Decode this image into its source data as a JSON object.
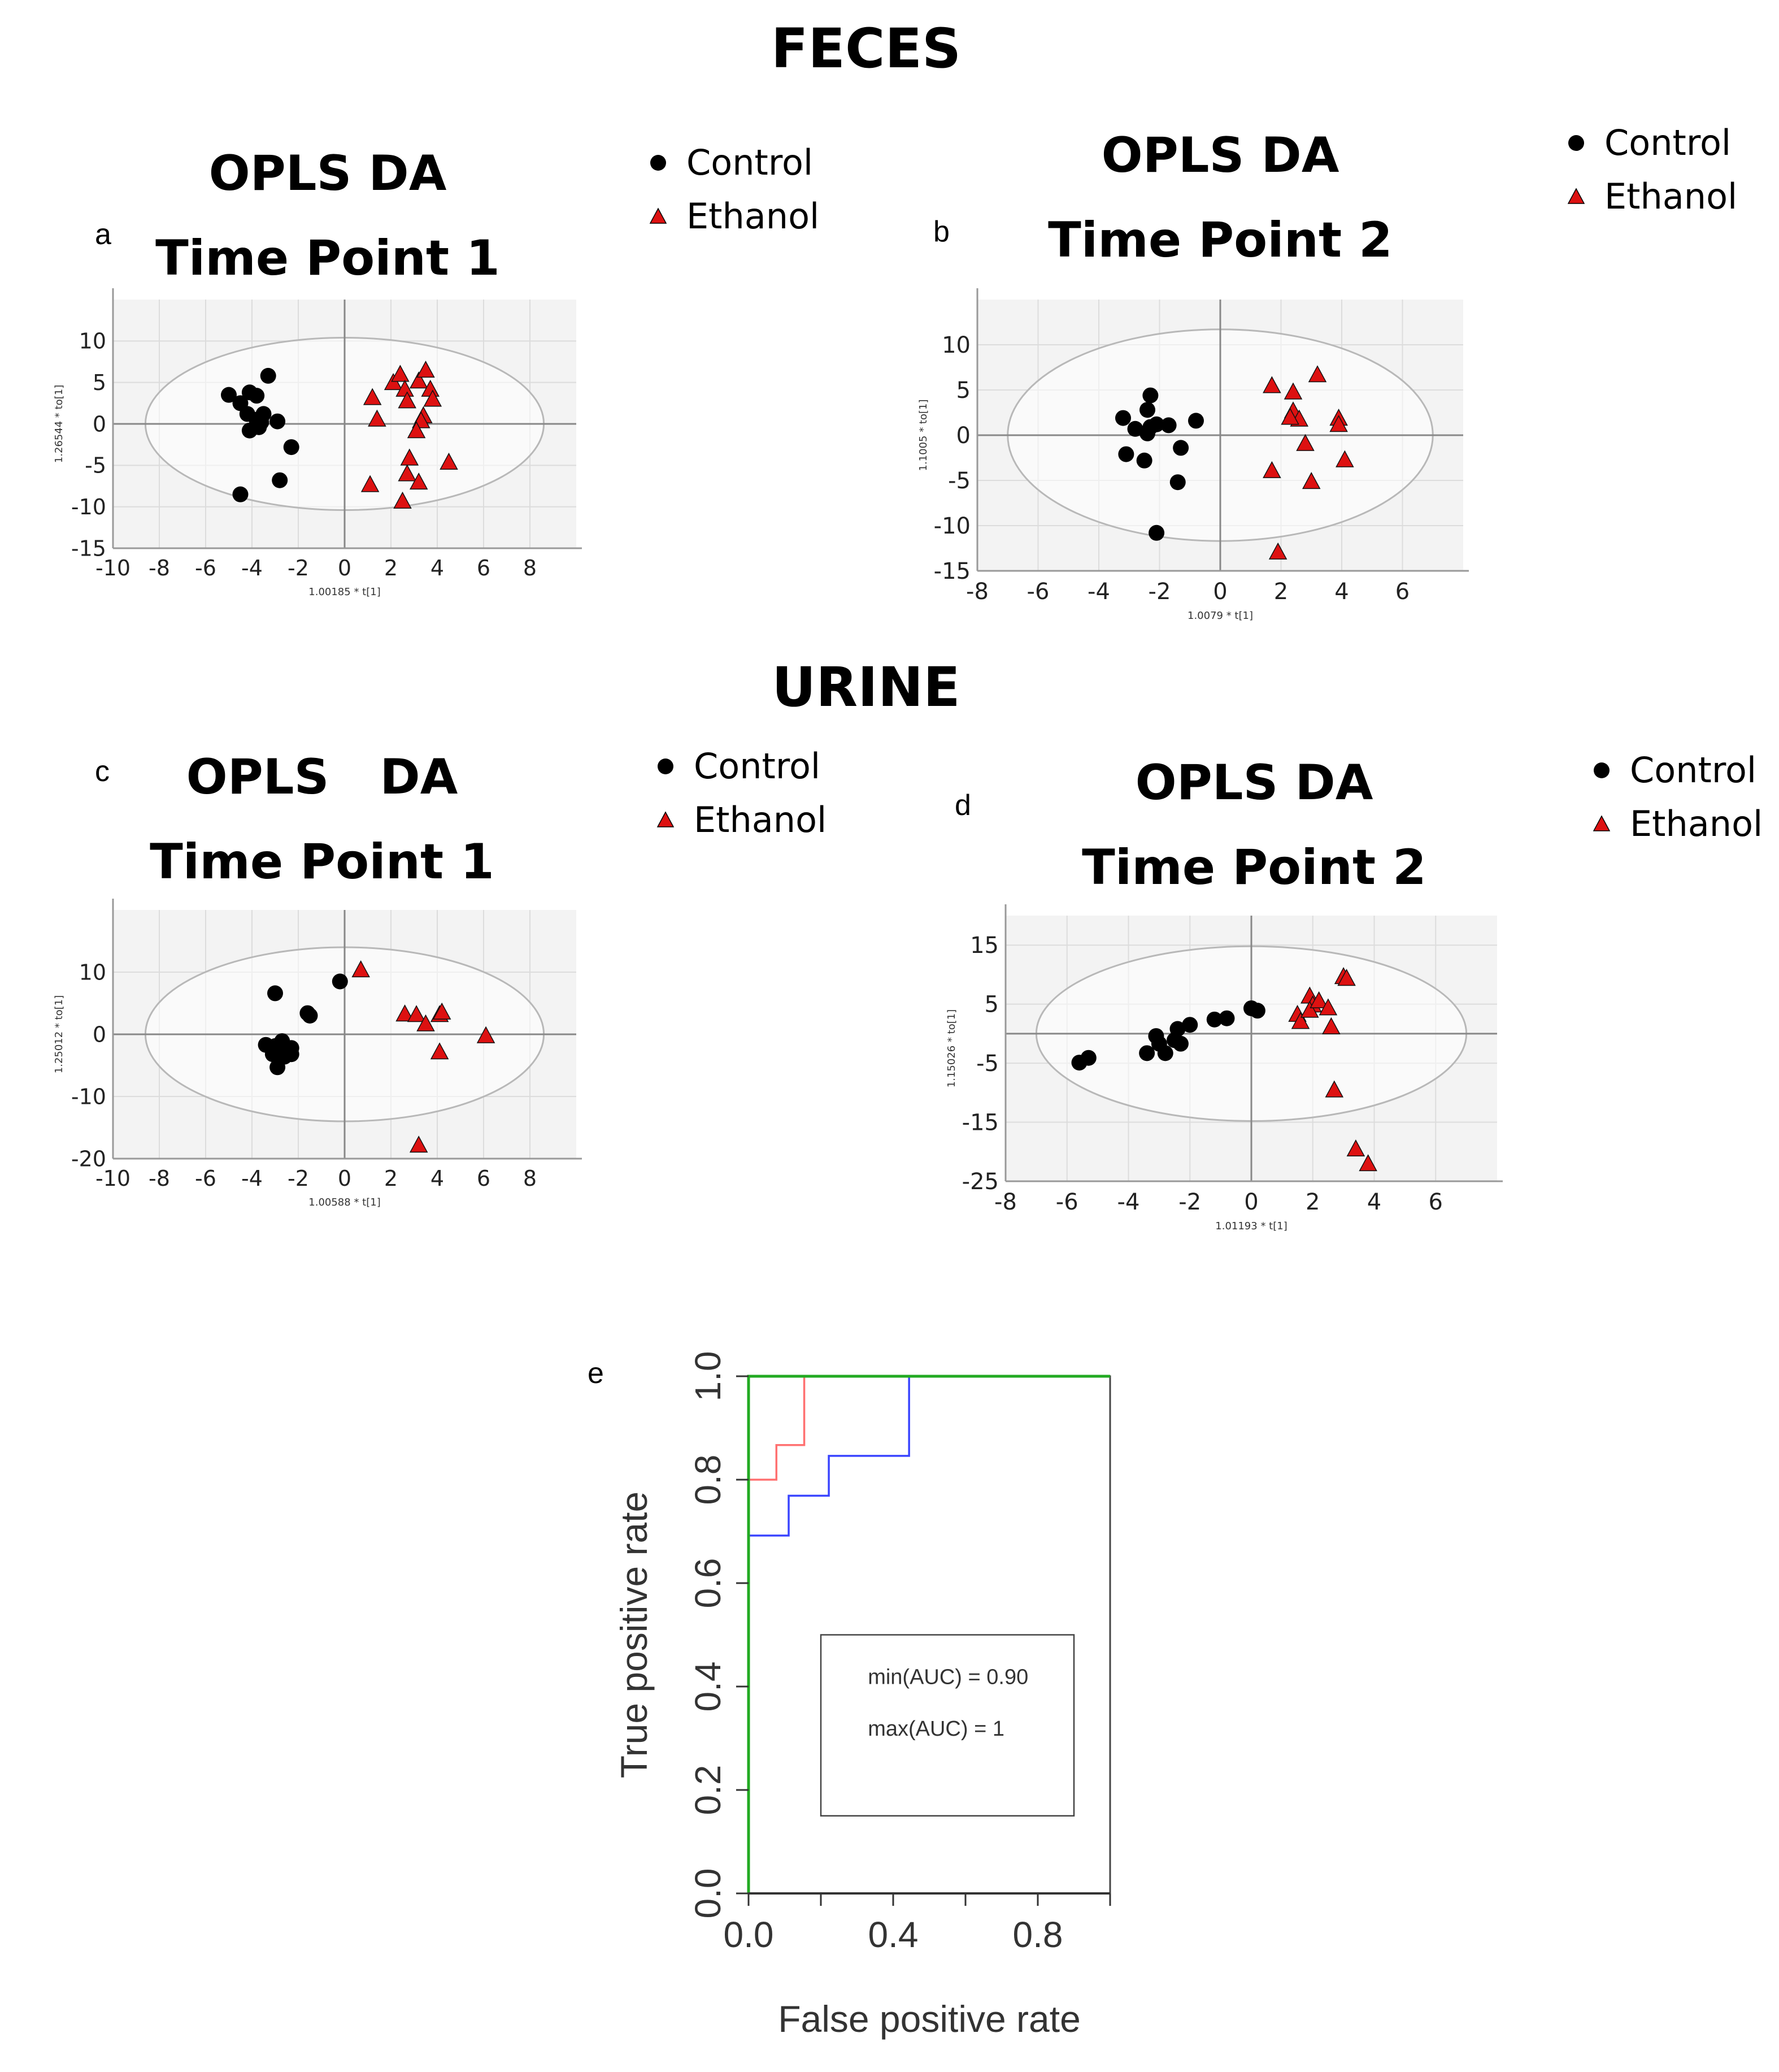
{
  "sections": {
    "feces": "FECES",
    "urine": "URINE"
  },
  "legend": {
    "control": "Control",
    "ethanol": "Ethanol"
  },
  "colors": {
    "control": "#000000",
    "ethanol": "#dd1111",
    "roc_red": "#ff7070",
    "roc_blue": "#3a45ff",
    "roc_green": "#22aa22",
    "plot_bg": "#f3f3f3",
    "grid": "#dcdcdc"
  },
  "chart_data": [
    {
      "id": "a",
      "type": "scatter",
      "letter": "a",
      "title": [
        "OPLS DA",
        "Time Point 1"
      ],
      "xlabel": "1.00185 * t[1]",
      "ylabel": "1.26544 * to[1]",
      "xlim": [
        -10,
        10
      ],
      "ylim": [
        -15,
        15
      ],
      "xticks": [
        -10,
        -8,
        -6,
        -4,
        -2,
        0,
        2,
        4,
        6,
        8
      ],
      "yticks": [
        -15,
        -10,
        -5,
        0,
        5,
        10
      ],
      "ellipse": {
        "rx": 8.6,
        "ry": 10.4
      },
      "series": [
        {
          "name": "Control",
          "marker": "circle",
          "points": [
            [
              -5,
              3.5
            ],
            [
              -4.5,
              2.5
            ],
            [
              -4.1,
              3.8
            ],
            [
              -3.8,
              3.4
            ],
            [
              -3.3,
              5.8
            ],
            [
              -4.2,
              1.2
            ],
            [
              -3.8,
              0.5
            ],
            [
              -3.5,
              1.2
            ],
            [
              -3.6,
              0.2
            ],
            [
              -4.1,
              -0.8
            ],
            [
              -2.9,
              0.3
            ],
            [
              -3.7,
              -0.4
            ],
            [
              -2.3,
              -2.8
            ],
            [
              -4.5,
              -8.5
            ],
            [
              -2.8,
              -6.8
            ]
          ]
        },
        {
          "name": "Ethanol",
          "marker": "triangle",
          "points": [
            [
              1.2,
              3.2
            ],
            [
              2.1,
              5
            ],
            [
              2.4,
              6
            ],
            [
              2.6,
              4.2
            ],
            [
              3.2,
              5.2
            ],
            [
              3.5,
              6.5
            ],
            [
              3.7,
              4.2
            ],
            [
              3.8,
              3
            ],
            [
              2.7,
              2.8
            ],
            [
              1.4,
              0.6
            ],
            [
              3.4,
              1
            ],
            [
              3.3,
              0.4
            ],
            [
              3.1,
              -0.8
            ],
            [
              2.8,
              -4.1
            ],
            [
              2.7,
              -6
            ],
            [
              3.2,
              -7
            ],
            [
              4.5,
              -4.6
            ],
            [
              1.1,
              -7.3
            ],
            [
              2.5,
              -9.3
            ]
          ]
        }
      ]
    },
    {
      "id": "b",
      "type": "scatter",
      "letter": "b",
      "title": [
        "OPLS DA",
        "Time Point 2"
      ],
      "xlabel": "1.0079 * t[1]",
      "ylabel": "1.1005 * to[1]",
      "xlim": [
        -8,
        8
      ],
      "ylim": [
        -15,
        15
      ],
      "xticks": [
        -8,
        -6,
        -4,
        -2,
        0,
        2,
        4,
        6
      ],
      "yticks": [
        -15,
        -10,
        -5,
        0,
        5,
        10
      ],
      "ellipse": {
        "rx": 7,
        "ry": 11.7
      },
      "series": [
        {
          "name": "Control",
          "marker": "circle",
          "points": [
            [
              -2.3,
              4.4
            ],
            [
              -2.4,
              2.8
            ],
            [
              -3.2,
              1.9
            ],
            [
              -2.8,
              0.7
            ],
            [
              -2.3,
              0.9
            ],
            [
              -2.1,
              1.2
            ],
            [
              -1.7,
              1.1
            ],
            [
              -0.8,
              1.6
            ],
            [
              -2.4,
              0.2
            ],
            [
              -1.3,
              -1.4
            ],
            [
              -3.1,
              -2.1
            ],
            [
              -2.5,
              -2.8
            ],
            [
              -1.4,
              -5.2
            ],
            [
              -2.1,
              -10.8
            ]
          ]
        },
        {
          "name": "Ethanol",
          "marker": "triangle",
          "points": [
            [
              1.7,
              5.5
            ],
            [
              2.4,
              4.8
            ],
            [
              3.2,
              6.7
            ],
            [
              2.4,
              2.7
            ],
            [
              2.6,
              1.8
            ],
            [
              2.3,
              2
            ],
            [
              3.9,
              1.9
            ],
            [
              3.9,
              1.2
            ],
            [
              2.8,
              -0.9
            ],
            [
              4.1,
              -2.7
            ],
            [
              1.7,
              -3.9
            ],
            [
              3,
              -5.1
            ],
            [
              1.9,
              -12.9
            ]
          ]
        }
      ]
    },
    {
      "id": "c",
      "type": "scatter",
      "letter": "c",
      "title": [
        "OPLS   DA",
        "Time Point 1"
      ],
      "xlabel": "1.00588 * t[1]",
      "ylabel": "1.25012 * to[1]",
      "xlim": [
        -10,
        10
      ],
      "ylim": [
        -20,
        20
      ],
      "xticks": [
        -10,
        -8,
        -6,
        -4,
        -2,
        0,
        2,
        4,
        6,
        8
      ],
      "yticks": [
        -20,
        -10,
        0,
        10
      ],
      "ellipse": {
        "rx": 8.6,
        "ry": 14
      },
      "series": [
        {
          "name": "Control",
          "marker": "circle",
          "points": [
            [
              -0.2,
              8.5
            ],
            [
              -3,
              6.6
            ],
            [
              -1.6,
              3.4
            ],
            [
              -1.5,
              3
            ],
            [
              -3.4,
              -1.7
            ],
            [
              -3,
              -1.9
            ],
            [
              -2.7,
              -1.1
            ],
            [
              -2.6,
              -2.2
            ],
            [
              -2.3,
              -2.2
            ],
            [
              -3.1,
              -3.2
            ],
            [
              -2.6,
              -3.6
            ],
            [
              -2.3,
              -3.2
            ],
            [
              -2.9,
              -5.3
            ]
          ]
        },
        {
          "name": "Ethanol",
          "marker": "triangle",
          "points": [
            [
              0.7,
              10.4
            ],
            [
              2.6,
              3.3
            ],
            [
              3.1,
              3.2
            ],
            [
              4.1,
              3.2
            ],
            [
              4.2,
              3.6
            ],
            [
              3.5,
              1.7
            ],
            [
              6.1,
              -0.2
            ],
            [
              4.1,
              -2.8
            ],
            [
              3.2,
              -17.8
            ]
          ]
        }
      ]
    },
    {
      "id": "d",
      "type": "scatter",
      "letter": "d",
      "title": [
        "OPLS DA",
        "Time Point 2"
      ],
      "xlabel": "1.01193 * t[1]",
      "ylabel": "1.15026 * to[1]",
      "xlim": [
        -8,
        8
      ],
      "ylim": [
        -25,
        20
      ],
      "xticks": [
        -8,
        -6,
        -4,
        -2,
        0,
        2,
        4,
        6
      ],
      "yticks": [
        -25,
        -15,
        -5,
        5,
        15
      ],
      "ellipse": {
        "rx": 7,
        "ry": 14.8
      },
      "series": [
        {
          "name": "Control",
          "marker": "circle",
          "points": [
            [
              -5.6,
              -4.9
            ],
            [
              -5.3,
              -4.1
            ],
            [
              -3.1,
              -0.4
            ],
            [
              -3,
              -1.7
            ],
            [
              -2.5,
              -1.1
            ],
            [
              -2.3,
              -1.7
            ],
            [
              -2.4,
              0.8
            ],
            [
              -2,
              1.5
            ],
            [
              -1.2,
              2.4
            ],
            [
              -0.8,
              2.6
            ],
            [
              0,
              4.3
            ],
            [
              0.2,
              3.9
            ],
            [
              -3.4,
              -3.3
            ],
            [
              -2.8,
              -3.3
            ]
          ]
        },
        {
          "name": "Ethanol",
          "marker": "triangle",
          "points": [
            [
              1.5,
              3.3
            ],
            [
              1.6,
              2.1
            ],
            [
              1.9,
              6.4
            ],
            [
              2,
              4.9
            ],
            [
              1.9,
              4
            ],
            [
              2.2,
              5.6
            ],
            [
              2.5,
              4.4
            ],
            [
              2.6,
              1.2
            ],
            [
              3,
              9.7
            ],
            [
              3.1,
              9.4
            ],
            [
              2.7,
              -9.5
            ],
            [
              3.4,
              -19.5
            ],
            [
              3.8,
              -22
            ]
          ]
        }
      ]
    },
    {
      "id": "e",
      "type": "line",
      "letter": "e",
      "xlabel": "False positive rate",
      "ylabel": "True positive rate",
      "xlim": [
        0,
        1
      ],
      "ylim": [
        0,
        1
      ],
      "xticks": [
        "0.0",
        "0.4",
        "0.8"
      ],
      "xtick_values": [
        0,
        0.4,
        0.8
      ],
      "yticks": [
        "0.0",
        "0.2",
        "0.4",
        "0.6",
        "0.8",
        "1.0"
      ],
      "ytick_values": [
        0,
        0.2,
        0.4,
        0.6,
        0.8,
        1.0
      ],
      "annotation": [
        "min(AUC)  = 0.90",
        "max(AUC) = 1"
      ],
      "series": [
        {
          "name": "blue",
          "color": "#3a45ff",
          "points": [
            [
              0,
              0
            ],
            [
              0,
              0.692
            ],
            [
              0.111,
              0.692
            ],
            [
              0.111,
              0.769
            ],
            [
              0.222,
              0.769
            ],
            [
              0.222,
              0.846
            ],
            [
              0.444,
              0.846
            ],
            [
              0.444,
              1
            ],
            [
              1,
              1
            ]
          ]
        },
        {
          "name": "red",
          "color": "#ff7070",
          "points": [
            [
              0,
              0
            ],
            [
              0,
              0.8
            ],
            [
              0.077,
              0.8
            ],
            [
              0.077,
              0.867
            ],
            [
              0.154,
              0.867
            ],
            [
              0.154,
              1
            ],
            [
              1,
              1
            ]
          ]
        },
        {
          "name": "green",
          "color": "#22aa22",
          "points": [
            [
              0,
              0
            ],
            [
              0,
              1
            ],
            [
              1,
              1
            ]
          ]
        }
      ]
    }
  ]
}
